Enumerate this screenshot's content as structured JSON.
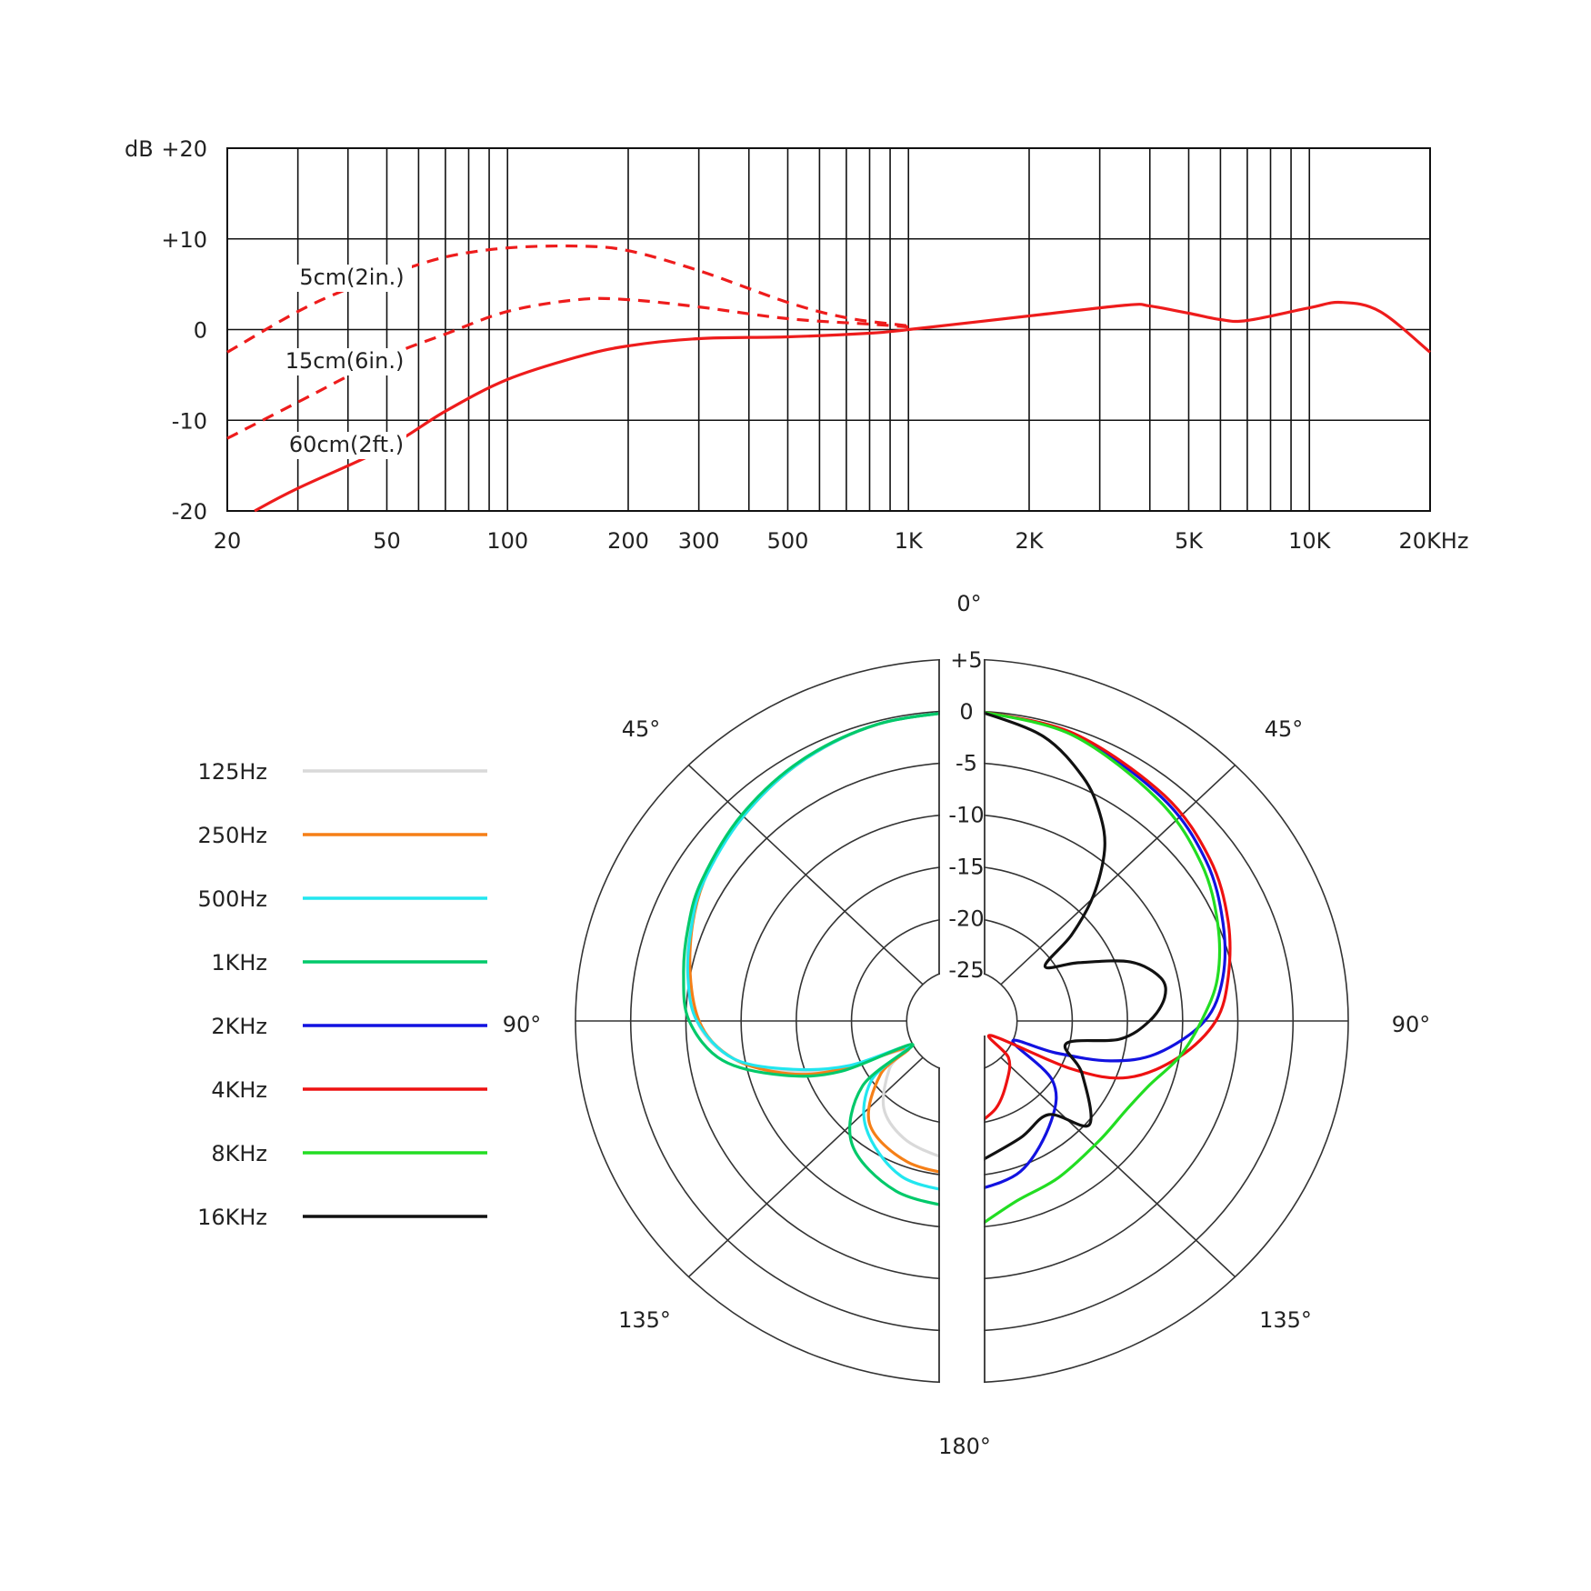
{
  "chart_data": [
    {
      "type": "line",
      "ylabel": "dB",
      "xscale": "log",
      "xlim": [
        20,
        20000
      ],
      "ylim": [
        -20,
        20
      ],
      "grid": true,
      "yticks": [
        "+20",
        "+10",
        "0",
        "-10",
        "-20"
      ],
      "ytick_values": [
        20,
        10,
        0,
        -10,
        -20
      ],
      "xticks": [
        "20",
        "50",
        "100",
        "200",
        "300",
        "500",
        "1K",
        "2K",
        "5K",
        "10K",
        "20KHz"
      ],
      "xtick_values": [
        20,
        50,
        100,
        200,
        300,
        500,
        1000,
        2000,
        5000,
        10000,
        20000
      ],
      "series": [
        {
          "name": "5cm(2in.)",
          "style": "dashed",
          "color": "#ee1c1c",
          "points": [
            [
              20,
              -2.5
            ],
            [
              30,
              2
            ],
            [
              40,
              4.5
            ],
            [
              50,
              6
            ],
            [
              70,
              8
            ],
            [
              100,
              9
            ],
            [
              150,
              9.2
            ],
            [
              200,
              8.7
            ],
            [
              300,
              6.5
            ],
            [
              500,
              3
            ],
            [
              700,
              1.3
            ],
            [
              1000,
              0.4
            ]
          ]
        },
        {
          "name": "15cm(6in.)",
          "style": "dashed",
          "color": "#ee1c1c",
          "points": [
            [
              20,
              -12
            ],
            [
              30,
              -8
            ],
            [
              50,
              -3
            ],
            [
              70,
              -0.5
            ],
            [
              100,
              2
            ],
            [
              150,
              3.3
            ],
            [
              200,
              3.3
            ],
            [
              300,
              2.5
            ],
            [
              500,
              1.2
            ],
            [
              800,
              0.6
            ],
            [
              1000,
              0.3
            ]
          ]
        },
        {
          "name": "60cm(2ft.)",
          "style": "solid",
          "color": "#ee1c1c",
          "points": [
            [
              23.4,
              -20
            ],
            [
              30,
              -17.5
            ],
            [
              50,
              -13
            ],
            [
              70,
              -9
            ],
            [
              100,
              -5.5
            ],
            [
              150,
              -3
            ],
            [
              200,
              -1.8
            ],
            [
              300,
              -1
            ],
            [
              500,
              -0.8
            ],
            [
              800,
              -0.4
            ],
            [
              1000,
              0
            ],
            [
              2000,
              1.5
            ],
            [
              3500,
              2.7
            ],
            [
              4000,
              2.6
            ],
            [
              5000,
              1.8
            ],
            [
              6000,
              1.1
            ],
            [
              7000,
              1.0
            ],
            [
              10000,
              2.4
            ],
            [
              12000,
              3
            ],
            [
              15000,
              2
            ],
            [
              20000,
              -2.5
            ]
          ]
        }
      ]
    },
    {
      "type": "polar",
      "angle_labels": {
        "top": "0°",
        "upper_left": "45°",
        "upper_right": "45°",
        "left": "90°",
        "right": "90°",
        "lower_left": "135°",
        "lower_right": "135°",
        "bottom": "180°"
      },
      "rings": [
        "+5",
        "0",
        "-5",
        "-10",
        "-15",
        "-20",
        "-25"
      ],
      "ring_values": [
        5,
        0,
        -5,
        -10,
        -15,
        -20,
        -25
      ],
      "rlim": [
        -30,
        5
      ],
      "series": [
        {
          "name": "125Hz",
          "color": "#d9d9d9",
          "side": "left",
          "points": [
            [
              0,
              0
            ],
            [
              15,
              -0.3
            ],
            [
              30,
              -1
            ],
            [
              45,
              -2
            ],
            [
              60,
              -3
            ],
            [
              75,
              -4.3
            ],
            [
              90,
              -6
            ],
            [
              100,
              -9
            ],
            [
              108,
              -14
            ],
            [
              113,
              -19
            ],
            [
              118,
              -24
            ],
            [
              125,
              -22
            ],
            [
              140,
              -19
            ],
            [
              155,
              -17.5
            ],
            [
              170,
              -16.8
            ],
            [
              180,
              -16.5
            ]
          ]
        },
        {
          "name": "250Hz",
          "color": "#f57f17",
          "side": "left",
          "points": [
            [
              0,
              0
            ],
            [
              15,
              -0.3
            ],
            [
              30,
              -1
            ],
            [
              45,
              -2
            ],
            [
              60,
              -3
            ],
            [
              75,
              -4.5
            ],
            [
              90,
              -6.2
            ],
            [
              100,
              -9
            ],
            [
              108,
              -13.5
            ],
            [
              113,
              -18
            ],
            [
              118,
              -24.5
            ],
            [
              125,
              -21
            ],
            [
              140,
              -17
            ],
            [
              160,
              -15.5
            ],
            [
              180,
              -15
            ]
          ]
        },
        {
          "name": "500Hz",
          "color": "#22e6ef",
          "side": "left",
          "points": [
            [
              0,
              0
            ],
            [
              15,
              -0.3
            ],
            [
              30,
              -1
            ],
            [
              45,
              -2
            ],
            [
              60,
              -3
            ],
            [
              70,
              -3.9
            ],
            [
              80,
              -4.8
            ],
            [
              90,
              -6
            ],
            [
              100,
              -9
            ],
            [
              107,
              -14
            ],
            [
              113,
              -19
            ],
            [
              117,
              -24.5
            ],
            [
              125,
              -20
            ],
            [
              140,
              -16.5
            ],
            [
              160,
              -14
            ],
            [
              180,
              -13.3
            ]
          ]
        },
        {
          "name": "1KHz",
          "color": "#00c96a",
          "side": "left",
          "points": [
            [
              0,
              0
            ],
            [
              15,
              -0.3
            ],
            [
              30,
              -0.9
            ],
            [
              45,
              -1.8
            ],
            [
              60,
              -2.8
            ],
            [
              70,
              -3.6
            ],
            [
              80,
              -4.4
            ],
            [
              90,
              -5.3
            ],
            [
              100,
              -8
            ],
            [
              108,
              -13
            ],
            [
              114,
              -18
            ],
            [
              117,
              -25
            ],
            [
              125,
              -19
            ],
            [
              140,
              -14.5
            ],
            [
              160,
              -12.5
            ],
            [
              180,
              -11.8
            ]
          ]
        },
        {
          "name": "2KHz",
          "color": "#1212e0",
          "side": "right",
          "points": [
            [
              3,
              0
            ],
            [
              20,
              -0.5
            ],
            [
              40,
              -1.8
            ],
            [
              55,
              -3
            ],
            [
              68,
              -4.5
            ],
            [
              80,
              -6
            ],
            [
              90,
              -8
            ],
            [
              100,
              -12
            ],
            [
              106,
              -16
            ],
            [
              110,
              -21
            ],
            [
              113,
              -25
            ],
            [
              125,
              -20
            ],
            [
              140,
              -17.4
            ],
            [
              160,
              -14.5
            ],
            [
              178,
              -13.4
            ]
          ]
        },
        {
          "name": "4KHz",
          "color": "#ee1111",
          "side": "right",
          "points": [
            [
              3,
              0
            ],
            [
              20,
              -0.4
            ],
            [
              40,
              -1.5
            ],
            [
              55,
              -2.6
            ],
            [
              68,
              -4
            ],
            [
              80,
              -5.5
            ],
            [
              90,
              -7
            ],
            [
              100,
              -10
            ],
            [
              110,
              -14
            ],
            [
              115,
              -19
            ],
            [
              118,
              -27
            ],
            [
              130,
              -24.5
            ],
            [
              144,
              -23
            ],
            [
              160,
              -21
            ],
            [
              176,
              -19.5
            ]
          ]
        },
        {
          "name": "8KHz",
          "color": "#22dd22",
          "side": "right",
          "points": [
            [
              3,
              0
            ],
            [
              20,
              -0.6
            ],
            [
              40,
              -2.2
            ],
            [
              55,
              -3.5
            ],
            [
              68,
              -5
            ],
            [
              80,
              -6.5
            ],
            [
              90,
              -8.3
            ],
            [
              100,
              -10
            ],
            [
              110,
              -11.9
            ],
            [
              120,
              -12.8
            ],
            [
              133,
              -13
            ],
            [
              150,
              -12.5
            ],
            [
              164,
              -11.9
            ],
            [
              176,
              -10
            ]
          ]
        },
        {
          "name": "16KHz",
          "color": "#111111",
          "side": "right",
          "points": [
            [
              3,
              0
            ],
            [
              15,
              -1.5
            ],
            [
              25,
              -4
            ],
            [
              32,
              -6.4
            ],
            [
              38,
              -9
            ],
            [
              44.5,
              -13
            ],
            [
              50,
              -17
            ],
            [
              55,
              -20.8
            ],
            [
              62,
              -18
            ],
            [
              69.5,
              -13.7
            ],
            [
              77,
              -11.5
            ],
            [
              83,
              -11.5
            ],
            [
              90,
              -13
            ],
            [
              97,
              -15.6
            ],
            [
              103,
              -20.3
            ],
            [
              115,
              -18
            ],
            [
              131,
              -14.7
            ],
            [
              139,
              -18
            ],
            [
              155,
              -17.5
            ],
            [
              176,
              -16
            ]
          ]
        }
      ]
    }
  ]
}
